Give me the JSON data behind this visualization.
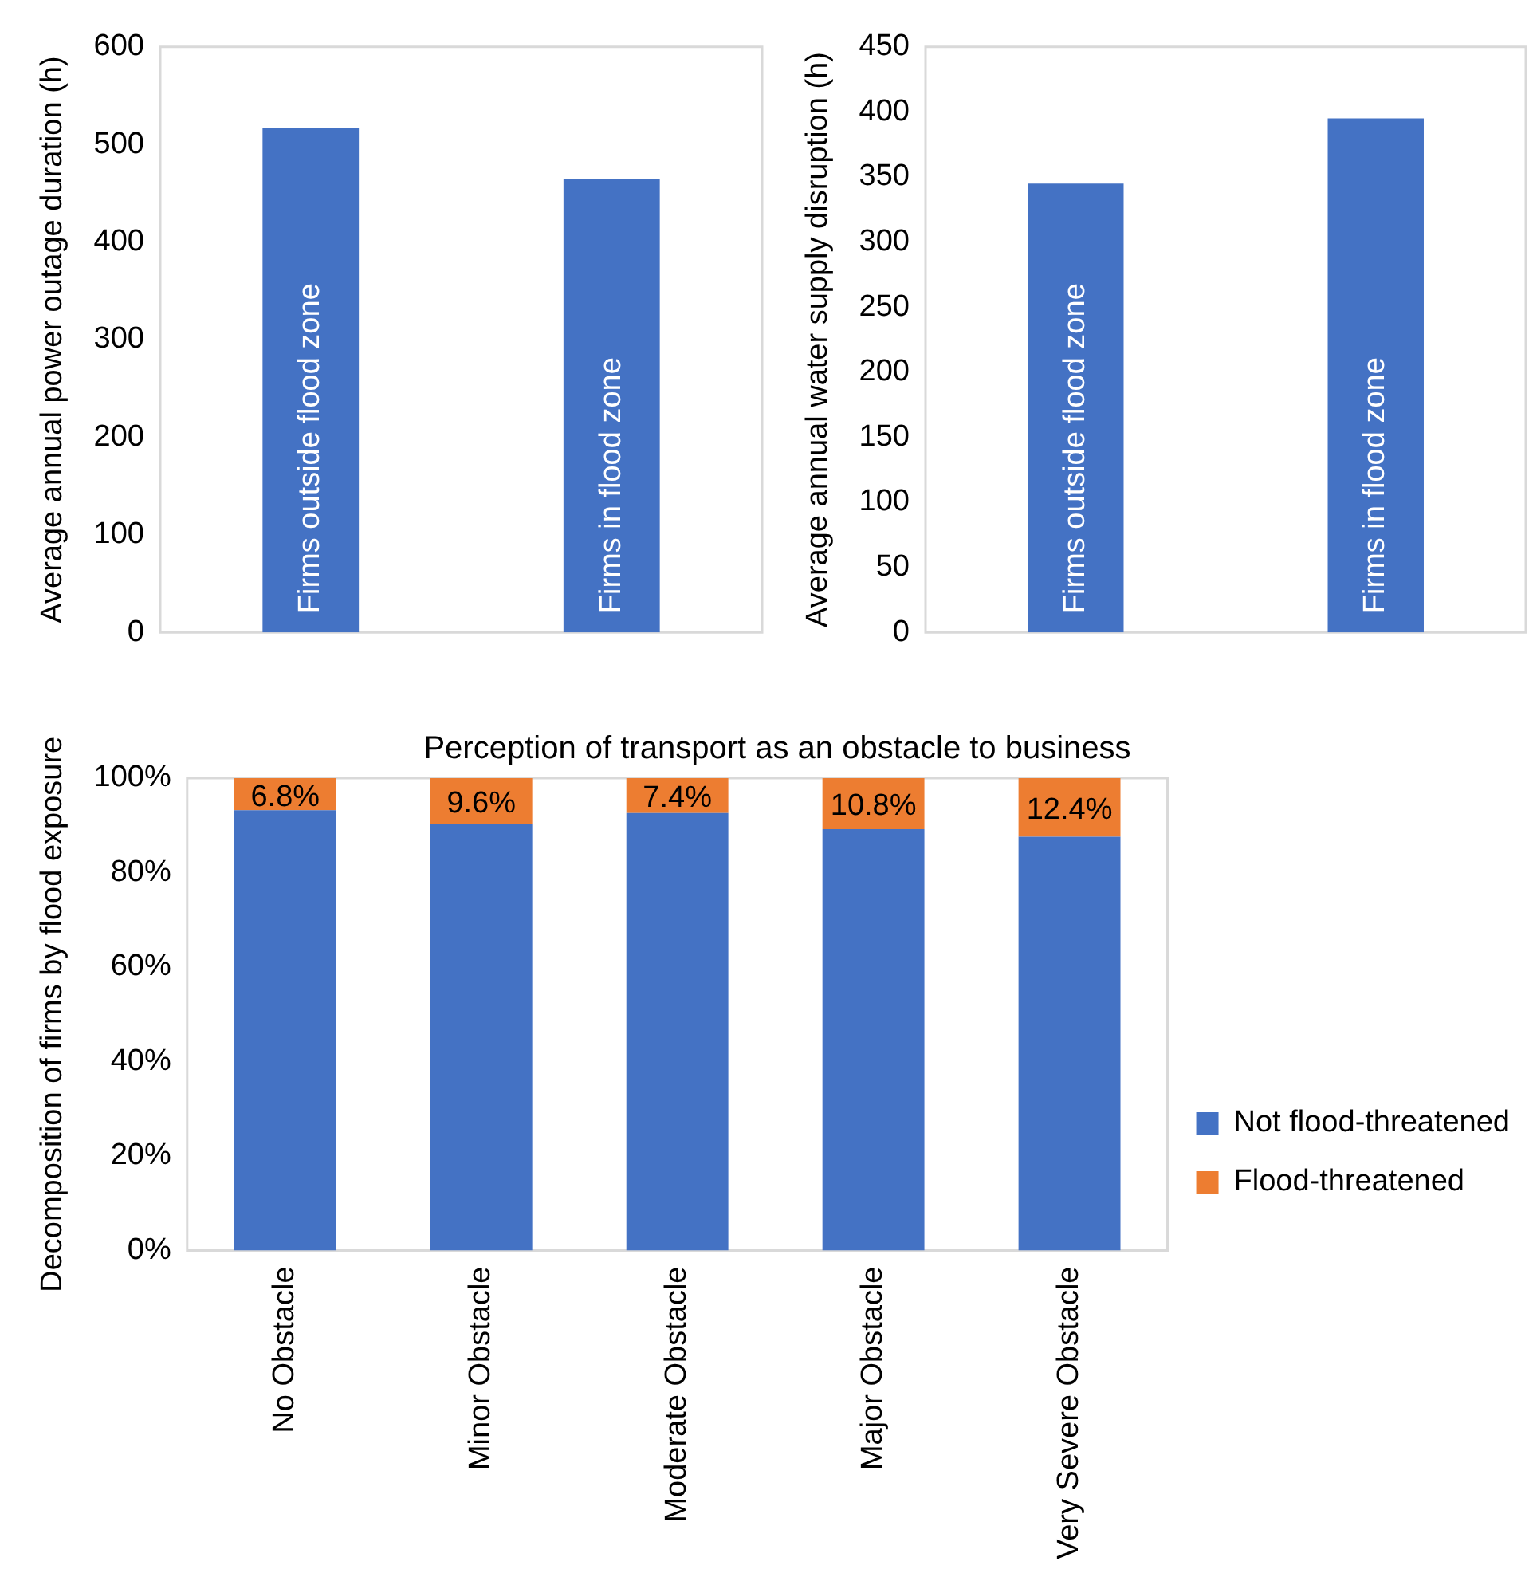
{
  "chart_data": [
    {
      "type": "bar",
      "ylabel": "Average annual power outage duration (h)",
      "categories": [
        "Firms outside flood zone",
        "Firms in flood zone"
      ],
      "values": [
        517,
        465
      ],
      "color": "#4472c4",
      "ylim": [
        0,
        600
      ],
      "yticks": [
        0,
        100,
        200,
        300,
        400,
        500,
        600
      ],
      "tick_labels": "y"
    },
    {
      "type": "bar",
      "ylabel": "Average annual water supply disruption (h)",
      "categories": [
        "Firms outside flood zone",
        "Firms in flood zone"
      ],
      "values": [
        345,
        395
      ],
      "color": "#4472c4",
      "ylim": [
        0,
        450
      ],
      "yticks": [
        0,
        50,
        100,
        150,
        200,
        250,
        300,
        350,
        400,
        450
      ],
      "tick_labels": "y"
    },
    {
      "type": "bar",
      "title": "Perception of transport as an obstacle to business",
      "ylabel": "Decomposition of firms by flood exposure",
      "categories": [
        "No Obstacle",
        "Minor Obstacle",
        "Moderate Obstacle",
        "Major Obstacle",
        "Very Severe Obstacle"
      ],
      "stacked": true,
      "legend": "right",
      "ylim": [
        0,
        100
      ],
      "yticks": [
        {
          "value": 0,
          "label": "0%"
        },
        {
          "value": 20,
          "label": "20%"
        },
        {
          "value": 40,
          "label": "40%"
        },
        {
          "value": 60,
          "label": "60%"
        },
        {
          "value": 80,
          "label": "80%"
        },
        {
          "value": 100,
          "label": "100%"
        }
      ],
      "series": [
        {
          "name": "Not flood-threatened",
          "color": "#4472c4",
          "values": [
            93.2,
            90.4,
            92.6,
            89.2,
            87.6
          ]
        },
        {
          "name": "Flood-threatened",
          "color": "#ed7d31",
          "values": [
            6.8,
            9.6,
            7.4,
            10.8,
            12.4
          ],
          "value_labels": [
            "6.8%",
            "9.6%",
            "7.4%",
            "10.8%",
            "12.4%"
          ]
        }
      ]
    }
  ]
}
